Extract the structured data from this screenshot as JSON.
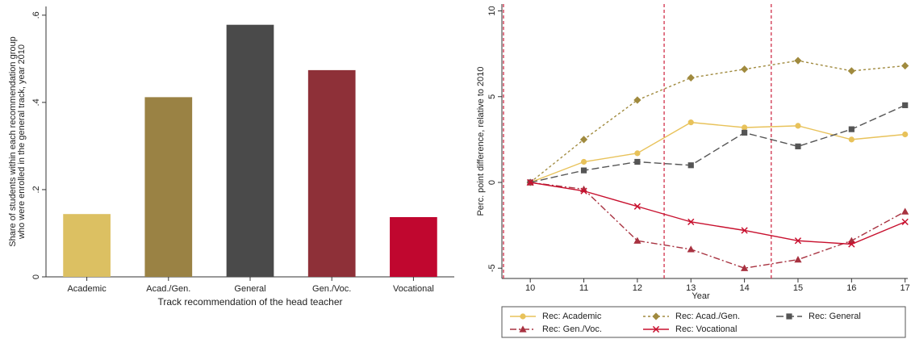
{
  "chart_data": [
    {
      "type": "bar",
      "xlabel": "Track recommendation of the head teacher",
      "ylabel": [
        "Share of students within each recommendation group",
        "who were enrolled in the general track, year 2010"
      ],
      "categories": [
        "Academic",
        "Acad./Gen.",
        "General",
        "Gen./Voc.",
        "Vocational"
      ],
      "values": [
        0.144,
        0.412,
        0.578,
        0.474,
        0.137
      ],
      "colors": [
        "#dcc062",
        "#9a8244",
        "#4a4a4a",
        "#8e3038",
        "#c0072f"
      ],
      "ylim": [
        0,
        0.62
      ],
      "yticks": [
        0,
        {
          "value": 0.2,
          "label": ".2"
        },
        {
          "value": 0.4,
          "label": ".4"
        },
        {
          "value": 0.6,
          "label": ".6"
        }
      ]
    },
    {
      "type": "line",
      "xlabel": "Year",
      "ylabel": "Perc. point difference, relative to 2010",
      "x": [
        10,
        11,
        12,
        13,
        14,
        15,
        16,
        17
      ],
      "xlim": [
        9.47,
        17.05
      ],
      "xticks": [
        10,
        11,
        12,
        13,
        14,
        15,
        16,
        17
      ],
      "ylim": [
        -5.6,
        10.4
      ],
      "yticks": [
        -5,
        0,
        5,
        10
      ],
      "vlines": [
        9.5,
        12.5,
        14.5
      ],
      "vline_color": "#d0304a",
      "series": [
        {
          "name": "Rec: Academic",
          "color": "#e8c25a",
          "dash": "none",
          "marker": "circle",
          "values": [
            0,
            1.2,
            1.7,
            3.5,
            3.2,
            3.3,
            2.5,
            2.8
          ]
        },
        {
          "name": "Rec: Acad./Gen.",
          "color": "#a08a3e",
          "dash": "3 3",
          "marker": "diamond",
          "values": [
            0,
            2.5,
            4.8,
            6.1,
            6.6,
            7.1,
            6.5,
            6.8
          ]
        },
        {
          "name": "Rec: General",
          "color": "#555555",
          "dash": "9 4",
          "marker": "square",
          "values": [
            0,
            0.7,
            1.2,
            1.0,
            2.9,
            2.1,
            3.1,
            4.5
          ]
        },
        {
          "name": "Rec: Gen./Voc.",
          "color": "#a83240",
          "dash": "8 3 2 3",
          "marker": "triangle",
          "values": [
            0,
            -0.4,
            -3.4,
            -3.9,
            -5.0,
            -4.5,
            -3.4,
            -1.7
          ]
        },
        {
          "name": "Rec: Vocational",
          "color": "#c8102e",
          "dash": "none",
          "marker": "x",
          "values": [
            0,
            -0.5,
            -1.4,
            -2.3,
            -2.8,
            -3.4,
            -3.6,
            -2.3
          ]
        }
      ]
    }
  ]
}
